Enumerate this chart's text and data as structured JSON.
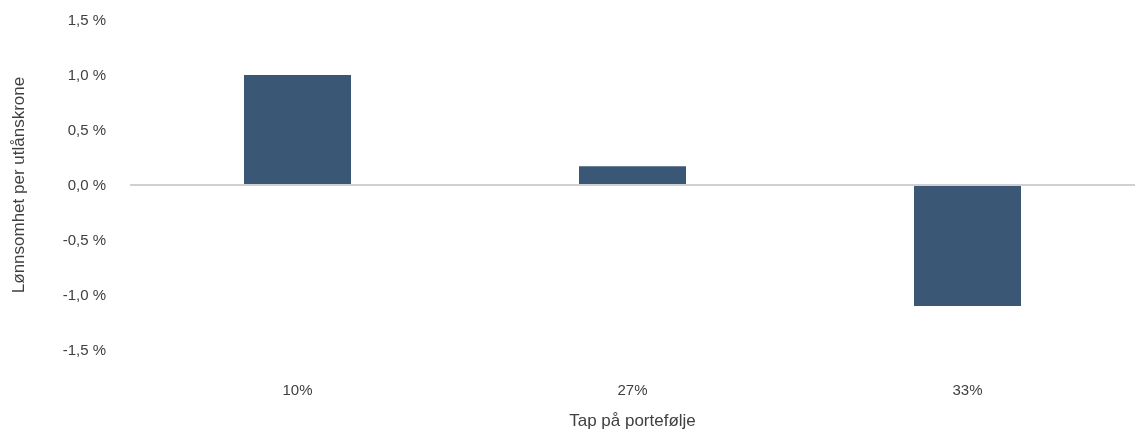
{
  "chart_data": {
    "type": "bar",
    "xlabel": "Tap på portefølje",
    "ylabel": "Lønnsomhet per utlånskrone",
    "categories": [
      "10%",
      "27%",
      "33%"
    ],
    "series": [
      {
        "color": "#3a5775",
        "values": [
          1.0,
          0.17,
          -1.1
        ]
      }
    ],
    "ylim": [
      -1.5,
      1.5
    ],
    "yticks": [
      {
        "value": -1.5,
        "label": "-1,5 %"
      },
      {
        "value": -1,
        "label": "-1,0 %"
      },
      {
        "value": -0.5,
        "label": "-0,5 %"
      },
      {
        "value": 0,
        "label": "0,0 %"
      },
      {
        "value": 0.5,
        "label": "0,5 %"
      },
      {
        "value": 1,
        "label": "1,0 %"
      },
      {
        "value": 1.5,
        "label": "1,5 %"
      }
    ],
    "ref_lines": [
      {
        "axis": "y",
        "value": 0,
        "color": "#d0d0d0"
      }
    ],
    "grid": false,
    "legend": false
  }
}
